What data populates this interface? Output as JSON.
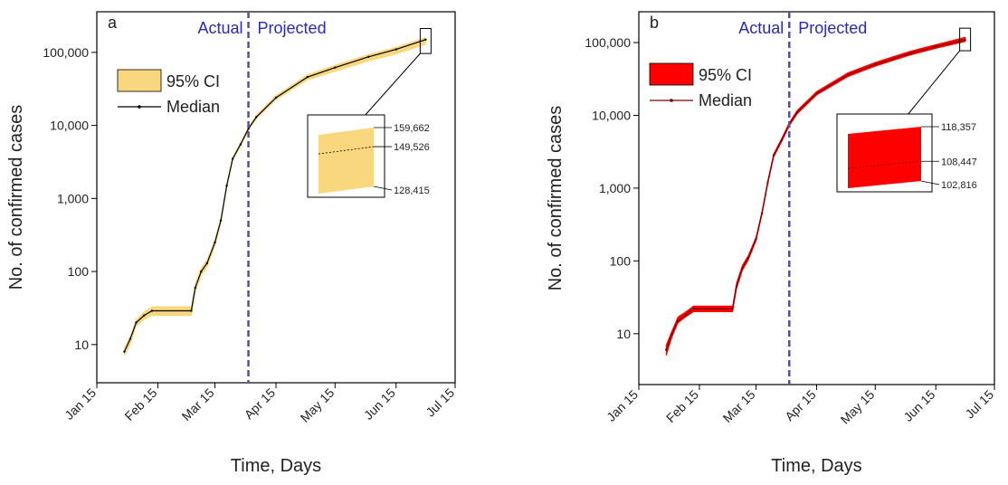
{
  "chart_data": [
    {
      "type": "line",
      "label": "a",
      "x_label": "Time, Days",
      "y_label": "No. of confirmed cases",
      "log_y": true,
      "legend": "upper left",
      "divider": "Apr 1",
      "annotations": [
        "Actual",
        "Projected"
      ],
      "x": [
        "Jan 29",
        "Feb 1",
        "Feb 4",
        "Feb 8",
        "Feb 12",
        "Mar 3",
        "Mar 5",
        "Mar 8",
        "Mar 11",
        "Mar 15",
        "Mar 18",
        "Mar 21",
        "Mar 24",
        "Mar 28",
        "Apr 1",
        "Apr 5",
        "Apr 15",
        "May 1",
        "May 15",
        "Jun 1",
        "Jun 15",
        "Jun 30"
      ],
      "xlim": [
        "Jan 15",
        "Jul 15"
      ],
      "xticks": [
        "Jan 15",
        "Feb 15",
        "Mar 15",
        "Apr 15",
        "May 15",
        "Jun 15",
        "Jul 15"
      ],
      "ylim": [
        3,
        360000
      ],
      "yticks": [
        10,
        100,
        {
          "value": 1000,
          "label": "1,000"
        },
        {
          "value": 10000,
          "label": "10,000"
        },
        {
          "value": 100000,
          "label": "100,000"
        }
      ],
      "series": [
        {
          "name": "95% CI",
          "color": "#f9d77e",
          "lower": [
            7,
            10,
            18,
            22,
            25,
            25,
            52,
            88,
            115,
            225,
            460,
            1400,
            3300,
            5200,
            8500,
            12300,
            22500,
            42000,
            55000,
            76000,
            95000,
            128415
          ],
          "upper": [
            9,
            13,
            22,
            28,
            33,
            33,
            68,
            112,
            145,
            275,
            540,
            1600,
            3700,
            5800,
            9500,
            13800,
            25800,
            49500,
            67000,
            94000,
            118000,
            159662
          ]
        },
        {
          "name": "Median",
          "color": "#000000",
          "values": [
            8,
            12,
            20,
            25,
            29,
            29,
            60,
            100,
            130,
            250,
            500,
            1500,
            3500,
            5500,
            9000,
            13000,
            24000,
            46000,
            62000,
            87000,
            110000,
            149526
          ]
        }
      ],
      "inset": {
        "values": [
          159662,
          149526,
          128415
        ],
        "value_labels": [
          "159,662",
          "149,526",
          "128,415"
        ]
      }
    },
    {
      "type": "line",
      "label": "b",
      "x_label": "Time, Days",
      "y_label": "No. of confirmed cases",
      "log_y": true,
      "legend": "upper left",
      "divider": "Apr 1",
      "annotations": [
        "Actual",
        "Projected"
      ],
      "x": [
        "Jan 29",
        "Feb 1",
        "Feb 4",
        "Feb 8",
        "Feb 12",
        "Mar 3",
        "Mar 5",
        "Mar 8",
        "Mar 11",
        "Mar 15",
        "Mar 18",
        "Mar 21",
        "Mar 24",
        "Mar 28",
        "Apr 1",
        "Apr 5",
        "Apr 15",
        "May 1",
        "May 15",
        "Jun 1",
        "Jun 15",
        "Jun 30"
      ],
      "xlim": [
        "Jan 15",
        "Jul 15"
      ],
      "xticks": [
        "Jan 15",
        "Feb 15",
        "Mar 15",
        "Apr 15",
        "May 15",
        "Jun 15",
        "Jul 15"
      ],
      "ylim": [
        2,
        265000
      ],
      "yticks": [
        10,
        100,
        {
          "value": 1000,
          "label": "1,000"
        },
        {
          "value": 10000,
          "label": "10,000"
        },
        {
          "value": 100000,
          "label": "100,000"
        }
      ],
      "series": [
        {
          "name": "95% CI",
          "color": "#ff0000",
          "lower": [
            5,
            9,
            14,
            17,
            20,
            20,
            41,
            74,
            102,
            188,
            425,
            1130,
            2650,
            4270,
            7120,
            10400,
            19000,
            34000,
            47300,
            66200,
            83200,
            102816
          ],
          "upper": [
            7,
            11,
            17,
            20,
            24,
            24,
            50,
            87,
            119,
            214,
            478,
            1280,
            2970,
            4780,
            7950,
            11700,
            21300,
            38500,
            53500,
            75000,
            94000,
            118357
          ]
        },
        {
          "name": "Median",
          "color": "#7a0000",
          "values": [
            6,
            10,
            15,
            18,
            22,
            22,
            45,
            80,
            110,
            200,
            450,
            1200,
            2800,
            4500,
            7500,
            11000,
            20000,
            36000,
            50000,
            70000,
            88000,
            108447
          ]
        }
      ],
      "inset": {
        "values": [
          118357,
          108447,
          102816
        ],
        "value_labels": [
          "118,357",
          "108,447",
          "102,816"
        ]
      }
    }
  ]
}
